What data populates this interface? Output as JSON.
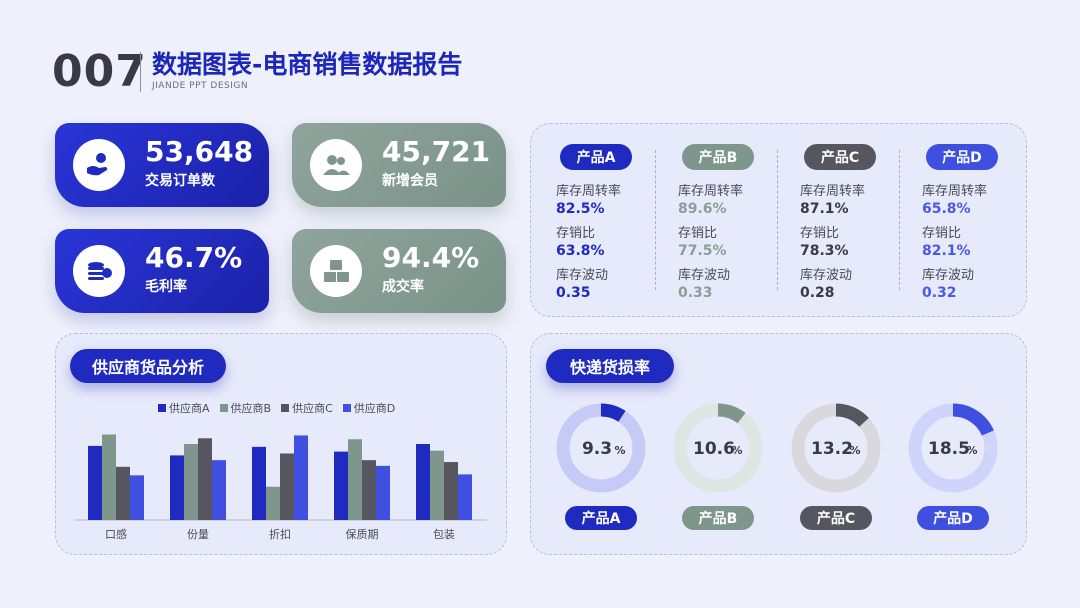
{
  "header": {
    "number": "007",
    "title": "数据图表-电商销售数据报告",
    "subtitle": "JIANDE PPT DESIGN"
  },
  "kpis": [
    {
      "value": "53,648",
      "label": "交易订单数",
      "icon": "hand-coin-icon",
      "color": "blue"
    },
    {
      "value": "45,721",
      "label": "新增会员",
      "icon": "users-icon",
      "color": "green"
    },
    {
      "value": "46.7%",
      "label": "毛利率",
      "icon": "coin-stack-icon",
      "color": "blue"
    },
    {
      "value": "94.4%",
      "label": "成交率",
      "icon": "boxes-icon",
      "color": "green"
    }
  ],
  "products": [
    {
      "name": "产品A",
      "color": "#1f2bc0",
      "turnover_label": "库存周转率",
      "turnover": "82.5%",
      "ratio_label": "存销比",
      "ratio": "63.8%",
      "volatility_label": "库存波动",
      "volatility": "0.35"
    },
    {
      "name": "产品B",
      "color": "#7f968c",
      "turnover_label": "库存周转率",
      "turnover": "89.6%",
      "ratio_label": "存销比",
      "ratio": "77.5%",
      "volatility_label": "库存波动",
      "volatility": "0.33"
    },
    {
      "name": "产品C",
      "color": "#3a3a46",
      "turnover_label": "库存周转率",
      "turnover": "87.1%",
      "ratio_label": "存销比",
      "ratio": "78.3%",
      "volatility_label": "库存波动",
      "volatility": "0.28"
    },
    {
      "name": "产品D",
      "color": "#3f4fe0",
      "turnover_label": "库存周转率",
      "turnover": "65.8%",
      "ratio_label": "存销比",
      "ratio": "82.1%",
      "volatility_label": "库存波动",
      "volatility": "0.32"
    }
  ],
  "supplier_panel": {
    "title": "供应商货品分析"
  },
  "loss_panel": {
    "title": "快递货损率"
  },
  "chart_data": [
    {
      "type": "bar",
      "title": "供应商货品分析",
      "categories": [
        "口感",
        "份量",
        "折扣",
        "保质期",
        "包装"
      ],
      "series": [
        {
          "name": "供应商A",
          "color": "#1f2bc0",
          "values": [
            78,
            68,
            77,
            72,
            80
          ]
        },
        {
          "name": "供应商B",
          "color": "#7f968c",
          "values": [
            90,
            80,
            35,
            85,
            73
          ]
        },
        {
          "name": "供应商C",
          "color": "#565660",
          "values": [
            56,
            86,
            70,
            63,
            61
          ]
        },
        {
          "name": "供应商D",
          "color": "#3f4fe0",
          "values": [
            47,
            63,
            89,
            57,
            48
          ]
        }
      ],
      "ylim": [
        0,
        100
      ],
      "legend": "top",
      "grid": false
    },
    {
      "type": "pie",
      "title": "快递货损率",
      "categories": [
        "产品A",
        "产品B",
        "产品C",
        "产品D"
      ],
      "values": [
        9.3,
        10.6,
        13.2,
        18.5
      ],
      "value_labels": [
        "9.3",
        "10.6",
        "13.2",
        "18.5"
      ],
      "unit": "%",
      "colors": [
        "#1f2bc0",
        "#7f968c",
        "#565660",
        "#3f4fe0"
      ],
      "track_colors": [
        "#c5cbf6",
        "#dfe5e2",
        "#d9d9dd",
        "#cfd4fa"
      ]
    }
  ]
}
